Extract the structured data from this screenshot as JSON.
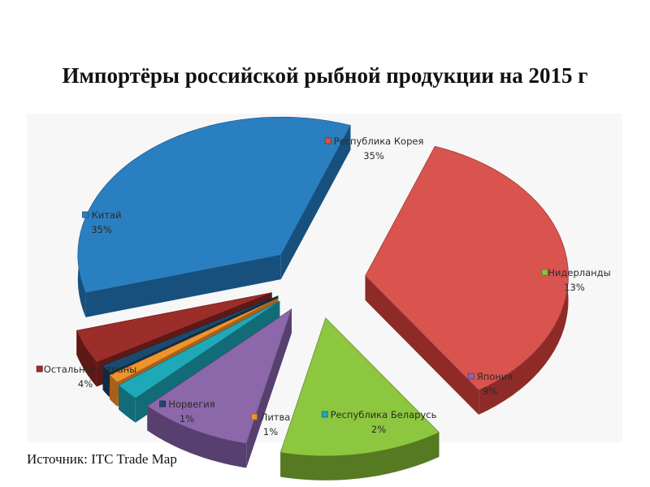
{
  "slide": {
    "title": "Импортёры российской рыбной продукции на 2015 г",
    "source": "Источник: ITC Trade Map"
  },
  "chart_data": {
    "type": "pie",
    "title": "",
    "unit": "%",
    "slices": [
      {
        "name": "Республика Корея",
        "value": 35,
        "label": "35%",
        "color": "#d9534f",
        "dark": "#8e2b28"
      },
      {
        "name": "Нидерланды",
        "value": 13,
        "label": "13%",
        "color": "#8dc63f",
        "dark": "#557a22"
      },
      {
        "name": "Япония",
        "value": 9,
        "label": "9%",
        "color": "#8c67aa",
        "dark": "#574070"
      },
      {
        "name": "Республика Беларусь",
        "value": 2,
        "label": "2%",
        "color": "#1fa8b8",
        "dark": "#126c77"
      },
      {
        "name": "Литва",
        "value": 1,
        "label": "1%",
        "color": "#f0932b",
        "dark": "#a8611a"
      },
      {
        "name": "Норвегия",
        "value": 1,
        "label": "1%",
        "color": "#1c4a6e",
        "dark": "#0f2b42"
      },
      {
        "name": "Остальные страны",
        "value": 4,
        "label": "4%",
        "color": "#9b2d2a",
        "dark": "#5e1816"
      },
      {
        "name": "Китай",
        "value": 35,
        "label": "35%",
        "color": "#2a7fc1",
        "dark": "#17507d"
      }
    ],
    "legend": "labels next to slices",
    "style": "exploded 3d pie"
  }
}
